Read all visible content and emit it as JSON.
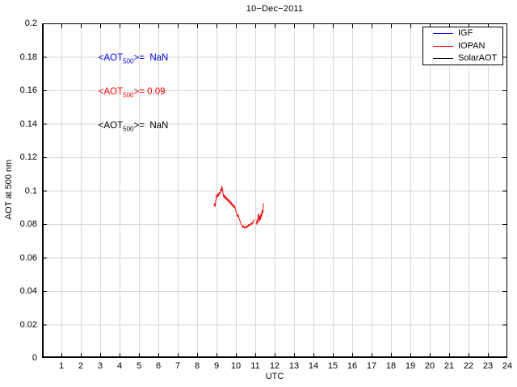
{
  "title": "10−Dec−2011",
  "axes": {
    "xlabel": "UTC",
    "ylabel": "AOT at 500 nm",
    "xlim": [
      0,
      24
    ],
    "ylim": [
      0,
      0.2
    ],
    "xticks": [
      1,
      2,
      3,
      4,
      5,
      6,
      7,
      8,
      9,
      10,
      11,
      12,
      13,
      14,
      15,
      16,
      17,
      18,
      19,
      20,
      21,
      22,
      23,
      24
    ],
    "xtick_labels": [
      "1",
      "2",
      "3",
      "4",
      "5",
      "6",
      "7",
      "8",
      "9",
      "10",
      "11",
      "12",
      "13",
      "14",
      "15",
      "16",
      "17",
      "18",
      "19",
      "20",
      "21",
      "22",
      "23",
      "24"
    ],
    "yticks": [
      0,
      0.02,
      0.04,
      0.06,
      0.08,
      0.1,
      0.12,
      0.14,
      0.16,
      0.18,
      0.2
    ],
    "ytick_labels": [
      "0",
      "0.02",
      "0.04",
      "0.06",
      "0.08",
      "0.1",
      "0.12",
      "0.14",
      "0.16",
      "0.18",
      "0.2"
    ]
  },
  "legend": {
    "position": "top-right",
    "entries": [
      {
        "label": "IGF",
        "color": "#0000FF"
      },
      {
        "label": "IOPAN",
        "color": "#FF0000"
      },
      {
        "label": "SolarAOT",
        "color": "#000000"
      }
    ]
  },
  "annotations": [
    {
      "prefix": "<AOT",
      "sub": "500",
      "suffix": ">=  NaN",
      "color": "#0000FF"
    },
    {
      "prefix": "<AOT",
      "sub": "500",
      "suffix": ">= 0.09",
      "color": "#FF0000"
    },
    {
      "prefix": "<AOT",
      "sub": "500",
      "suffix": ">=  NaN",
      "color": "#000000"
    }
  ],
  "chart_data": {
    "type": "line",
    "title": "10−Dec−2011",
    "xlabel": "UTC",
    "ylabel": "AOT at 500 nm",
    "xlim": [
      0,
      24
    ],
    "ylim": [
      0,
      0.2
    ],
    "grid": true,
    "grid_color": "#D9D9D9",
    "legend_position": "top-right",
    "series": [
      {
        "name": "IGF",
        "color": "#0000FF",
        "mean_aot_500": "NaN",
        "segments": []
      },
      {
        "name": "IOPAN",
        "color": "#FF0000",
        "mean_aot_500": 0.09,
        "segments": [
          {
            "x": [
              8.87,
              8.9,
              8.93,
              8.96,
              8.99,
              9.02,
              9.05,
              9.08,
              9.11,
              9.14,
              9.17,
              9.2,
              9.23,
              9.26,
              9.28,
              9.31,
              9.34,
              9.37,
              9.4,
              9.43,
              9.46,
              9.49,
              9.52,
              9.55,
              9.58,
              9.61,
              9.64,
              9.67,
              9.7,
              9.73,
              9.76,
              9.79,
              9.82,
              9.85,
              9.88,
              9.91,
              9.94,
              9.97,
              10.0,
              10.03,
              10.06,
              10.09,
              10.12,
              10.15,
              10.18,
              10.21,
              10.24,
              10.27,
              10.3,
              10.33,
              10.36,
              10.39,
              10.42,
              10.45,
              10.48,
              10.51,
              10.54,
              10.57,
              10.6,
              10.63,
              10.66,
              10.69,
              10.72,
              10.75,
              10.78,
              10.81,
              10.84,
              10.87,
              10.9,
              10.93,
              10.96
            ],
            "y": [
              0.091,
              0.0922,
              0.0905,
              0.0938,
              0.0962,
              0.0975,
              0.096,
              0.0982,
              0.097,
              0.099,
              0.0978,
              0.0995,
              0.101,
              0.0998,
              0.1025,
              0.1008,
              0.098,
              0.0962,
              0.0975,
              0.0955,
              0.0968,
              0.0948,
              0.096,
              0.0942,
              0.0952,
              0.0935,
              0.0945,
              0.0928,
              0.0938,
              0.092,
              0.093,
              0.0912,
              0.0922,
              0.0905,
              0.0915,
              0.0898,
              0.0908,
              0.089,
              0.0878,
              0.0868,
              0.0852,
              0.0845,
              0.0856,
              0.084,
              0.083,
              0.082,
              0.0812,
              0.0802,
              0.0795,
              0.0788,
              0.078,
              0.079,
              0.078,
              0.0775,
              0.0786,
              0.0778,
              0.0788,
              0.078,
              0.0792,
              0.0785,
              0.0797,
              0.079,
              0.08,
              0.0794,
              0.0806,
              0.0798,
              0.081,
              0.0804,
              0.0816,
              0.0822,
              0.0828
            ]
          },
          {
            "x": [
              11.06,
              11.09,
              11.12,
              11.15,
              11.18,
              11.21,
              11.24,
              11.27,
              11.3,
              11.33,
              11.36,
              11.39,
              11.42
            ],
            "y": [
              0.0798,
              0.0825,
              0.0806,
              0.0862,
              0.084,
              0.0816,
              0.0852,
              0.0828,
              0.0862,
              0.0846,
              0.0884,
              0.0866,
              0.0924
            ]
          }
        ]
      },
      {
        "name": "SolarAOT",
        "color": "#000000",
        "mean_aot_500": "NaN",
        "segments": []
      }
    ]
  }
}
